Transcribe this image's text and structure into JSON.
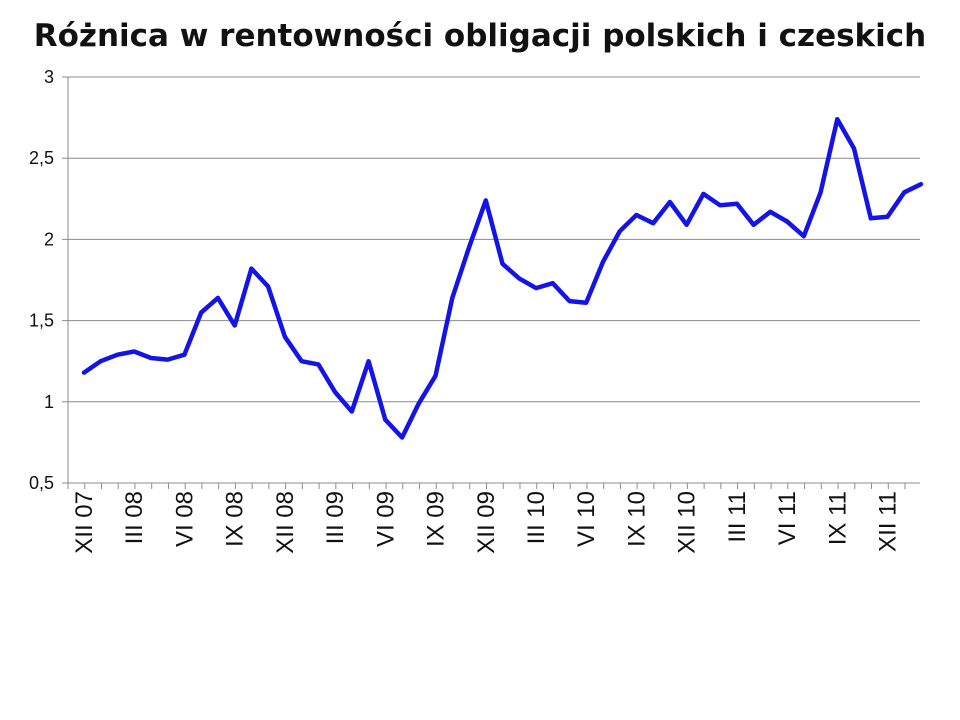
{
  "chart_data": {
    "type": "line",
    "title": "Różnica w rentowności obligacji polskich i czeskich",
    "xlabel": "",
    "ylabel": "",
    "ylim": [
      0.5,
      3
    ],
    "yticks": [
      0.5,
      1,
      1.5,
      2,
      2.5,
      3
    ],
    "ytick_labels": [
      "0,5",
      "1",
      "1,5",
      "2",
      "2,5",
      "3"
    ],
    "grid": true,
    "legend": "none",
    "line_color": "#1414e6",
    "x_tick_labels": [
      "XII 07",
      "III 08",
      "VI 08",
      "IX 08",
      "XII 08",
      "III 09",
      "VI 09",
      "IX 09",
      "XII 09",
      "III 10",
      "VI 10",
      "IX 10",
      "XII 10",
      "III 11",
      "VI 11",
      "IX 11",
      "XII 11"
    ],
    "series": [
      {
        "values": [
          1.18,
          1.25,
          1.29,
          1.31,
          1.27,
          1.26,
          1.29,
          1.55,
          1.64,
          1.47,
          1.82,
          1.71,
          1.4,
          1.25,
          1.23,
          1.06,
          0.94,
          1.25,
          0.89,
          0.78,
          0.99,
          1.16,
          1.64,
          1.95,
          2.24,
          1.85,
          1.76,
          1.7,
          1.73,
          1.62,
          1.61,
          1.86,
          2.05,
          2.15,
          2.1,
          2.23,
          2.09,
          2.28,
          2.21,
          2.22,
          2.09,
          2.17,
          2.11,
          2.02,
          2.29,
          2.74,
          2.56,
          2.13,
          2.14,
          2.29,
          2.34
        ]
      }
    ]
  }
}
